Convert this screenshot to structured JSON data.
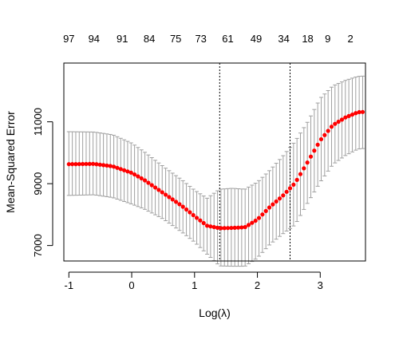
{
  "chart_data": {
    "type": "scatter",
    "xlabel": "Log(λ)",
    "ylabel": "Mean-Squared Error",
    "xlim": [
      -1.08,
      3.72
    ],
    "ylim": [
      6500,
      12900
    ],
    "x_ticks": [
      -1,
      0,
      1,
      2,
      3
    ],
    "y_ticks": [
      7000,
      9000,
      11000
    ],
    "top_axis": {
      "x": [
        -1.0,
        -0.6,
        -0.15,
        0.28,
        0.7,
        1.1,
        1.53,
        1.98,
        2.42,
        2.8,
        3.12,
        3.48
      ],
      "labels": [
        "97",
        "94",
        "91",
        "84",
        "75",
        "73",
        "61",
        "49",
        "34",
        "18",
        "9",
        "2"
      ]
    },
    "vlines": [
      1.4,
      2.52
    ],
    "series": [
      {
        "points": [
          [
            -1.0,
            9630,
            10680,
            8620
          ],
          [
            -0.6,
            9640,
            10670,
            8640
          ],
          [
            -0.3,
            9560,
            10580,
            8550
          ],
          [
            0.0,
            9350,
            10310,
            8340
          ],
          [
            0.2,
            9120,
            10030,
            8180
          ],
          [
            0.5,
            8700,
            9560,
            7860
          ],
          [
            0.8,
            8280,
            9120,
            7430
          ],
          [
            1.0,
            7950,
            8790,
            7110
          ],
          [
            1.2,
            7640,
            8530,
            6720
          ],
          [
            1.4,
            7560,
            8820,
            6340
          ],
          [
            1.6,
            7570,
            8850,
            6330
          ],
          [
            1.8,
            7590,
            8820,
            6330
          ],
          [
            2.0,
            7840,
            9050,
            6600
          ],
          [
            2.2,
            8250,
            9440,
            7040
          ],
          [
            2.4,
            8600,
            9880,
            7370
          ],
          [
            2.6,
            9020,
            10370,
            7670
          ],
          [
            2.8,
            9700,
            11000,
            8380
          ],
          [
            3.0,
            10400,
            11760,
            9050
          ],
          [
            3.2,
            10890,
            12160,
            9620
          ],
          [
            3.4,
            11140,
            12340,
            9910
          ],
          [
            3.6,
            11310,
            12470,
            10120
          ],
          [
            3.7,
            11320,
            12480,
            10140
          ]
        ]
      }
    ],
    "colors": {
      "points": "#ff0000",
      "error_bars": "#a0a0a0",
      "vlines": "#000000",
      "frame": "#000000"
    },
    "grid": false
  }
}
